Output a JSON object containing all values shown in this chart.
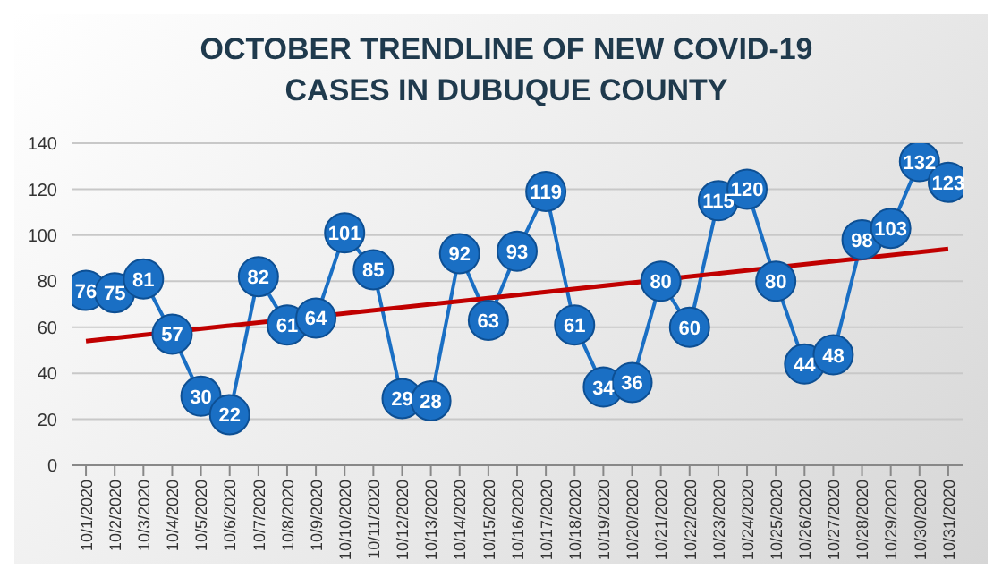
{
  "chart_data": {
    "type": "line",
    "title": "OCTOBER TRENDLINE OF NEW COVID-19 CASES IN DUBUQUE COUNTY",
    "categories": [
      "10/1/2020",
      "10/2/2020",
      "10/3/2020",
      "10/4/2020",
      "10/5/2020",
      "10/6/2020",
      "10/7/2020",
      "10/8/2020",
      "10/9/2020",
      "10/10/2020",
      "10/11/2020",
      "10/12/2020",
      "10/13/2020",
      "10/14/2020",
      "10/15/2020",
      "10/16/2020",
      "10/17/2020",
      "10/18/2020",
      "10/19/2020",
      "10/20/2020",
      "10/21/2020",
      "10/22/2020",
      "10/23/2020",
      "10/24/2020",
      "10/25/2020",
      "10/26/2020",
      "10/27/2020",
      "10/28/2020",
      "10/29/2020",
      "10/30/2020",
      "10/31/2020"
    ],
    "series": [
      {
        "color": "#1a6fc4",
        "marker": "circle",
        "values": [
          76,
          75,
          81,
          57,
          30,
          22,
          82,
          61,
          64,
          101,
          85,
          29,
          28,
          92,
          63,
          93,
          119,
          61,
          34,
          36,
          80,
          60,
          115,
          120,
          80,
          44,
          48,
          98,
          103,
          132,
          123
        ],
        "value_labels": [
          "76",
          "75",
          "81",
          "57",
          "30",
          "22",
          "82",
          "61",
          "64",
          "101",
          "85",
          "29",
          "28",
          "92",
          "63",
          "93",
          "119",
          "61",
          "34",
          "36",
          "80",
          "60",
          "115",
          "120",
          "80",
          "44",
          "48",
          "98",
          "103",
          "132",
          "123"
        ]
      },
      {
        "type": "line",
        "color": "#c00000",
        "marker": "none",
        "x": [
          "10/1/2020",
          "10/31/2020"
        ],
        "values": [
          54,
          94
        ]
      }
    ],
    "ylim": [
      0,
      140
    ],
    "yticks": [
      0,
      20,
      40,
      60,
      80,
      100,
      120,
      140
    ],
    "grid": "y",
    "legend": false
  }
}
